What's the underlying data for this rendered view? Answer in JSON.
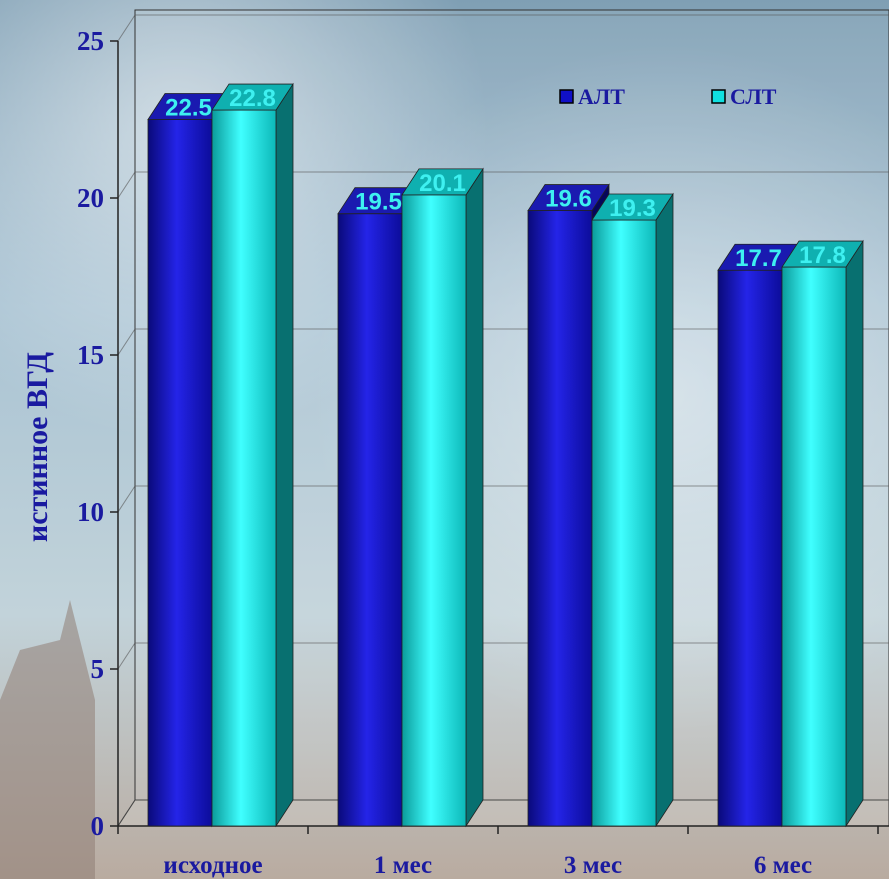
{
  "chart_data": {
    "type": "bar",
    "categories": [
      "исходное",
      "1 мес",
      "3 мес",
      "6 мес"
    ],
    "series": [
      {
        "name": "АЛТ",
        "values": [
          22.5,
          19.5,
          19.6,
          17.7
        ],
        "color": "#1010c8"
      },
      {
        "name": "СЛТ",
        "values": [
          22.8,
          20.1,
          19.3,
          17.8
        ],
        "color": "#10e0e0"
      }
    ],
    "title": "",
    "xlabel": "",
    "ylabel": "истинное ВГД",
    "ylim": [
      0,
      25
    ],
    "yticks": [
      0,
      5,
      10,
      15,
      20,
      25
    ],
    "grid": true,
    "legend": "top-right",
    "data_labels": true,
    "style": "3d"
  },
  "colors": {
    "label_text": "#3ef0f0",
    "axis_text": "#1a1aa0"
  }
}
